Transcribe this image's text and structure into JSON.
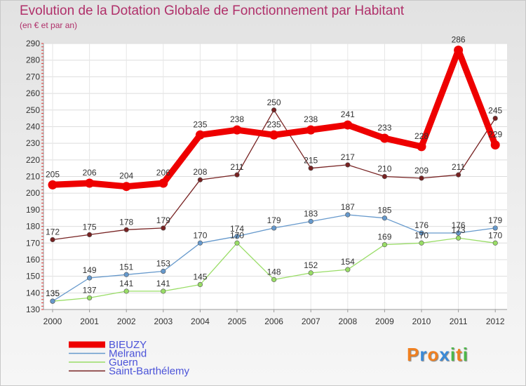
{
  "chart_data": {
    "type": "line",
    "title": "Evolution de la Dotation Globale de Fonctionnement par Habitant",
    "subtitle": "(en € et par an)",
    "xlabel": "",
    "ylabel": "",
    "ylim": [
      130,
      290
    ],
    "y_ticks": [
      130,
      140,
      150,
      160,
      170,
      180,
      190,
      200,
      210,
      220,
      230,
      240,
      250,
      260,
      270,
      280,
      290
    ],
    "categories": [
      "2000",
      "2001",
      "2002",
      "2003",
      "2004",
      "2005",
      "2006",
      "2007",
      "2008",
      "2009",
      "2010",
      "2011",
      "2012"
    ],
    "grid": true,
    "legend_position": "bottom-left",
    "series": [
      {
        "name": "BIEUZY",
        "color": "#ee0000",
        "values": [
          205,
          206,
          204,
          206,
          235,
          238,
          235,
          238,
          241,
          233,
          228,
          286,
          229
        ]
      },
      {
        "name": "Melrand",
        "color": "#6699cc",
        "values": [
          135,
          149,
          151,
          153,
          170,
          174,
          179,
          183,
          187,
          185,
          176,
          176,
          179
        ]
      },
      {
        "name": "Guern",
        "color": "#99dd66",
        "values": [
          135,
          137,
          141,
          141,
          145,
          170,
          148,
          152,
          154,
          169,
          170,
          173,
          170
        ]
      },
      {
        "name": "Saint-Barthélemy",
        "color": "#772222",
        "values": [
          172,
          175,
          178,
          179,
          208,
          211,
          250,
          215,
          217,
          210,
          209,
          211,
          245
        ]
      }
    ]
  },
  "logo": {
    "text": "Proxiti",
    "letters": [
      "P",
      "r",
      "o",
      "x",
      "i",
      "t",
      "i"
    ],
    "colors": [
      "#f08020",
      "#3a8ad8",
      "#f08020",
      "#3a8ad8",
      "#4cb848",
      "#f08020",
      "#4cb848"
    ]
  }
}
